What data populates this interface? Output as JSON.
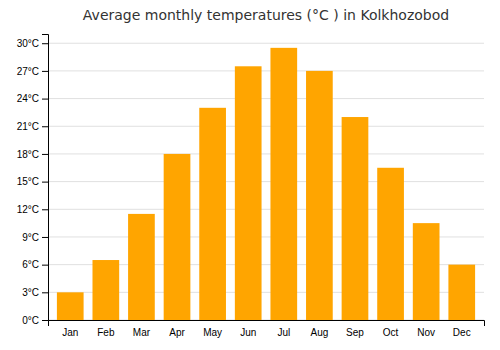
{
  "chart_data": {
    "type": "bar",
    "title": "Average monthly temperatures (°C ) in Kolkhozobod",
    "categories": [
      "Jan",
      "Feb",
      "Mar",
      "Apr",
      "May",
      "Jun",
      "Jul",
      "Aug",
      "Sep",
      "Oct",
      "Nov",
      "Dec"
    ],
    "values": [
      3,
      6.5,
      11.5,
      18,
      23,
      27.5,
      29.5,
      27,
      22,
      16.5,
      10.5,
      6
    ],
    "color": "#FFA500",
    "ylim": [
      0,
      31
    ],
    "yticks": [
      {
        "value": 0,
        "label": "0°C"
      },
      {
        "value": 3,
        "label": "3°C"
      },
      {
        "value": 6,
        "label": "6°C"
      },
      {
        "value": 9,
        "label": "9°C"
      },
      {
        "value": 12,
        "label": "12°C"
      },
      {
        "value": 15,
        "label": "15°C"
      },
      {
        "value": 18,
        "label": "18°C"
      },
      {
        "value": 21,
        "label": "21°C"
      },
      {
        "value": 24,
        "label": "24°C"
      },
      {
        "value": 27,
        "label": "27°C"
      },
      {
        "value": 30,
        "label": "30°C"
      }
    ],
    "grid": true
  }
}
